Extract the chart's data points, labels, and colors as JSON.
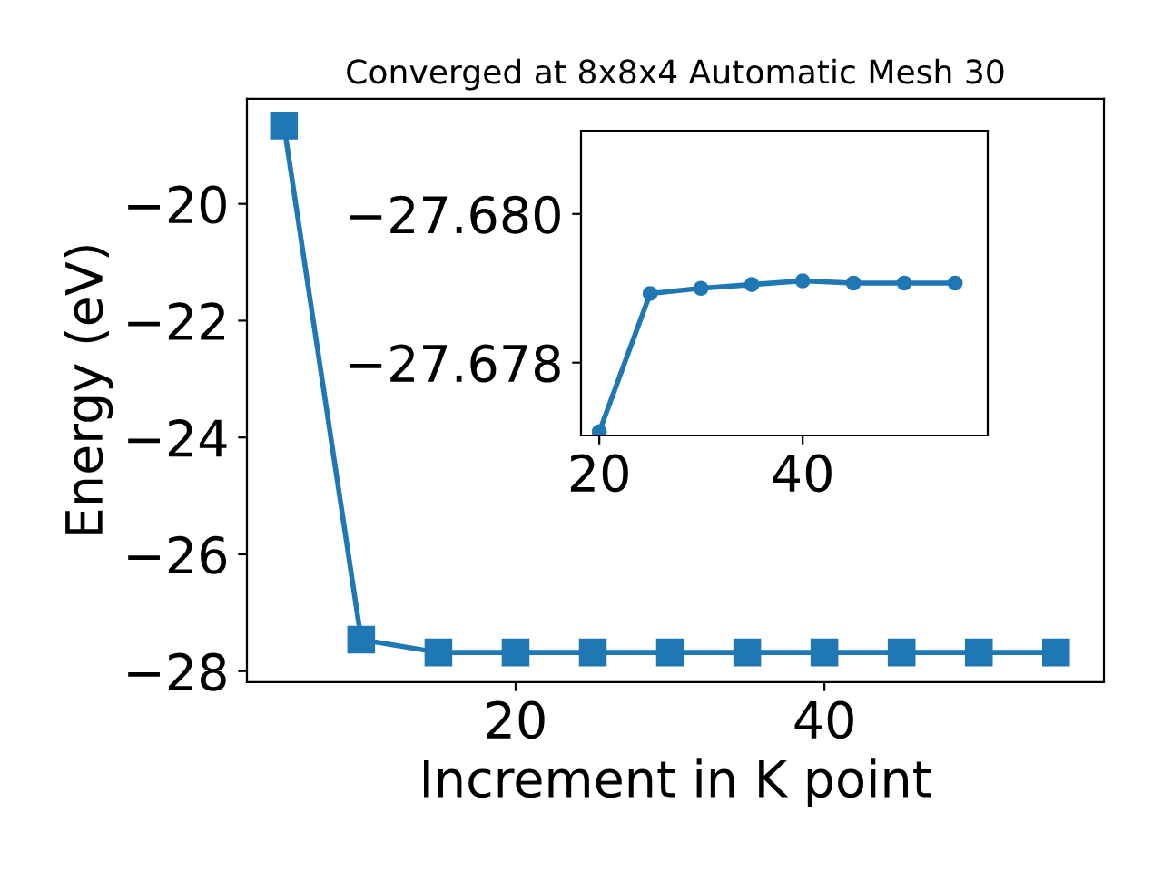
{
  "chart_data": [
    {
      "type": "line",
      "title": "Converged at 8x8x4 Automatic Mesh 30",
      "xlabel": "Increment in K point",
      "ylabel": "Energy (eV)",
      "marker": "square",
      "line_style": "solid",
      "grid": false,
      "legend": false,
      "x": [
        5,
        10,
        15,
        20,
        25,
        30,
        35,
        40,
        45,
        50,
        55
      ],
      "series": [
        {
          "color": "#1f77b4",
          "values": [
            -18.66,
            -27.46,
            -27.68,
            -27.68,
            -27.68,
            -27.68,
            -27.68,
            -27.68,
            -27.68,
            -27.68,
            -27.68
          ]
        }
      ],
      "xlim": [
        2.6,
        58.1
      ],
      "ylim": [
        -28.19,
        -18.2
      ],
      "xticks": [
        20,
        40
      ],
      "yticks": [
        {
          "value": -28,
          "label": "−28"
        },
        {
          "value": -26,
          "label": "−26"
        },
        {
          "value": -24,
          "label": "−24"
        },
        {
          "value": -22,
          "label": "−22"
        },
        {
          "value": -20,
          "label": "−20"
        }
      ]
    },
    {
      "type": "line",
      "marker": "circle",
      "line_style": "solid",
      "grid": false,
      "legend": false,
      "x": [
        20,
        25,
        30,
        35,
        40,
        45,
        50,
        55
      ],
      "series": [
        {
          "color": "#1f77b4",
          "values": [
            -27.67707,
            -27.67893,
            -27.679,
            -27.67905,
            -27.6791,
            -27.67907,
            -27.67907,
            -27.67907
          ]
        }
      ],
      "xlim": [
        18.2,
        58.2
      ],
      "ylim": [
        -27.67702,
        -27.68112
      ],
      "xticks": [
        20,
        40
      ],
      "yticks": [
        {
          "value": -27.68,
          "label": "−27.680"
        },
        {
          "value": -27.678,
          "label": "−27.678"
        }
      ]
    }
  ]
}
